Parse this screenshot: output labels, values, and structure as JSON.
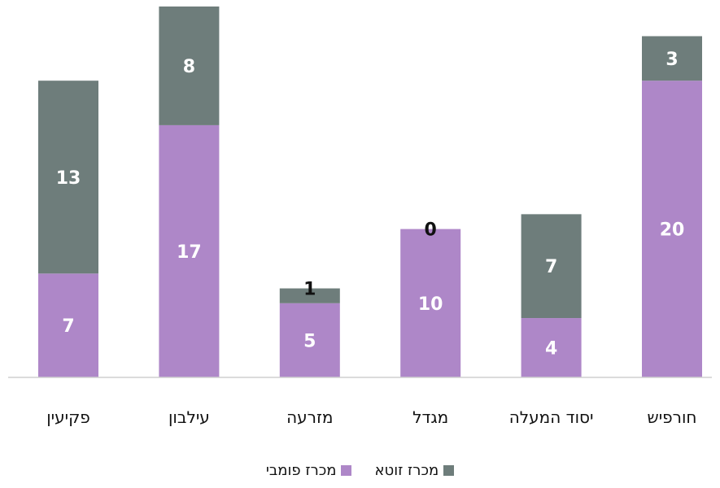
{
  "chart_data": {
    "type": "bar",
    "stacked": true,
    "categories": [
      "פקיעין",
      "עילבון",
      "מזרעה",
      "מגדל",
      "יסוד המעלה",
      "חורפיש"
    ],
    "series": [
      {
        "name": "מכרז פומבי",
        "values": [
          7,
          17,
          5,
          10,
          4,
          20
        ],
        "color": "#ae87c8",
        "label_color": "#ffffff"
      },
      {
        "name": "מכרז זוטא",
        "values": [
          13,
          8,
          1,
          0,
          7,
          3
        ],
        "color": "#6e7d7b",
        "label_color": "#ffffff"
      }
    ],
    "ylim": [
      0,
      25
    ],
    "grid": false,
    "legend_position": "bottom"
  }
}
